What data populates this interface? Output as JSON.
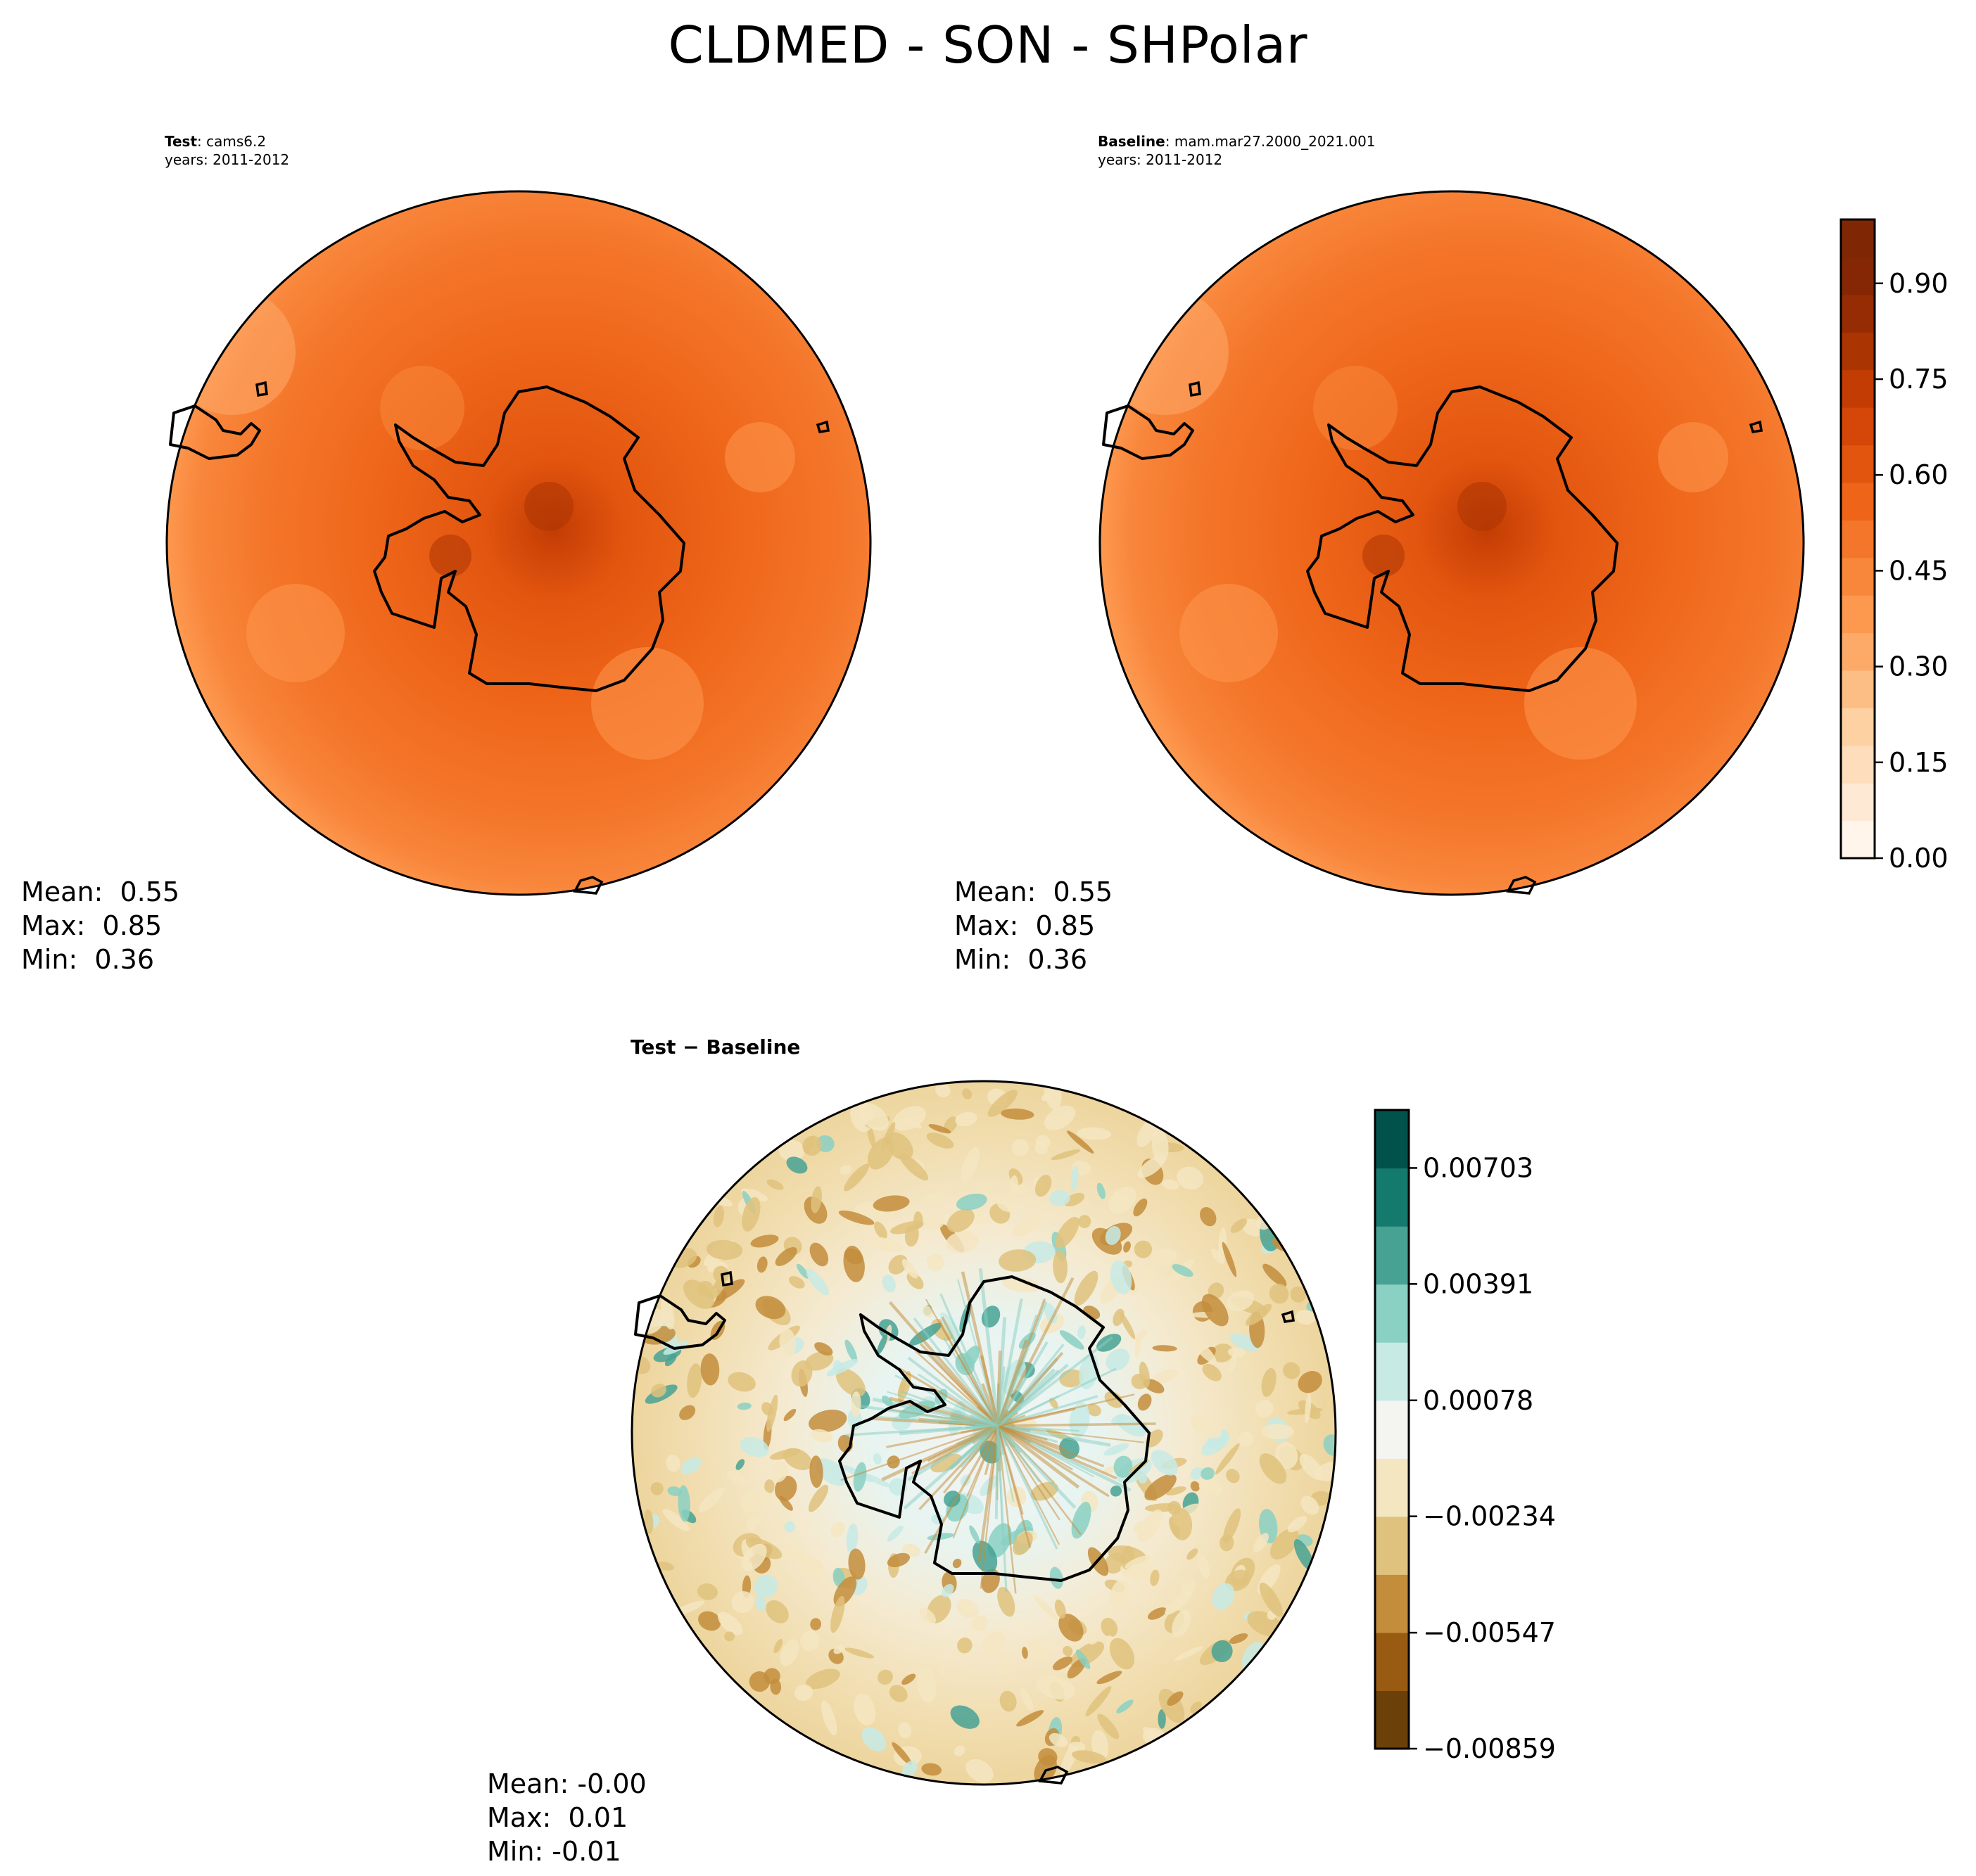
{
  "figure": {
    "title": "CLDMED - SON - SHPolar"
  },
  "panels": {
    "test": {
      "label_bold": "Test",
      "label_name": "cams6.2",
      "years": "years: 2011-2012",
      "stats": {
        "mean": "Mean:  0.55",
        "max": "Max:  0.85",
        "min": "Min:  0.36"
      }
    },
    "baseline": {
      "label_bold": "Baseline",
      "label_name": "mam.mar27.2000_2021.001",
      "years": "years: 2011-2012",
      "stats": {
        "mean": "Mean:  0.55",
        "max": "Max:  0.85",
        "min": "Min:  0.36"
      }
    },
    "diff": {
      "label_bold": "Test − Baseline",
      "stats": {
        "mean": "Mean: -0.00",
        "max": "Max:  0.01",
        "min": "Min: -0.01"
      }
    }
  },
  "colorbars": {
    "main": {
      "ticks": [
        "0.00",
        "0.15",
        "0.30",
        "0.45",
        "0.60",
        "0.75",
        "0.90"
      ],
      "tick_values": [
        0.0,
        0.15,
        0.3,
        0.45,
        0.6,
        0.75,
        0.9
      ],
      "range": [
        0.0,
        1.0
      ],
      "colors": [
        "#fff5eb",
        "#fee9d4",
        "#fdddbb",
        "#fdd1a2",
        "#fdbe86",
        "#fdaa69",
        "#fd984f",
        "#f8863b",
        "#f4762a",
        "#ee6519",
        "#e2550f",
        "#d44708",
        "#c23c03",
        "#ab3403",
        "#962c03",
        "#852704",
        "#7f2704"
      ]
    },
    "diff": {
      "ticks": [
        "−0.00859",
        "−0.00547",
        "−0.00234",
        "0.00078",
        "0.00391",
        "0.00703"
      ],
      "tick_values": [
        -0.00859,
        -0.00547,
        -0.00234,
        0.00078,
        0.00391,
        0.00703
      ],
      "range": [
        -0.00859,
        0.00859
      ],
      "colors": [
        "#6b4009",
        "#985b11",
        "#c38d3c",
        "#dfc27d",
        "#f5e6c2",
        "#f4f4f1",
        "#c7eae5",
        "#8ad0c3",
        "#47a294",
        "#137a6d",
        "#01524a"
      ]
    }
  },
  "chart_data": [
    {
      "type": "heatmap",
      "title": "Test: cams6.2",
      "projection": "south polar stereographic",
      "colormap": "Oranges",
      "range": [
        0.0,
        1.0
      ],
      "summary": {
        "mean": 0.55,
        "max": 0.85,
        "min": 0.36
      }
    },
    {
      "type": "heatmap",
      "title": "Baseline: mam.mar27.2000_2021.001",
      "projection": "south polar stereographic",
      "colormap": "Oranges",
      "range": [
        0.0,
        1.0
      ],
      "summary": {
        "mean": 0.55,
        "max": 0.85,
        "min": 0.36
      }
    },
    {
      "type": "heatmap",
      "title": "Test − Baseline",
      "projection": "south polar stereographic",
      "colormap": "BrBG",
      "range": [
        -0.00859,
        0.00859
      ],
      "summary": {
        "mean": -0.0,
        "max": 0.01,
        "min": -0.01
      }
    }
  ]
}
